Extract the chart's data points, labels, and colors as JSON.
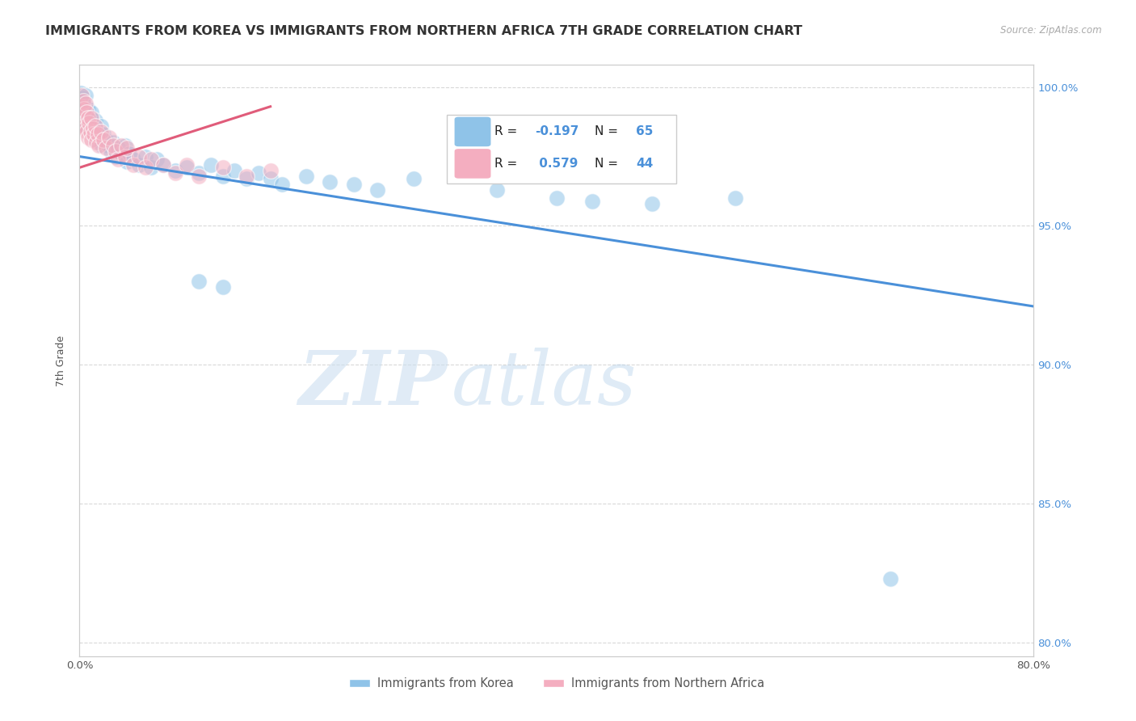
{
  "title": "IMMIGRANTS FROM KOREA VS IMMIGRANTS FROM NORTHERN AFRICA 7TH GRADE CORRELATION CHART",
  "source": "Source: ZipAtlas.com",
  "ylabel": "7th Grade",
  "xlim": [
    0.0,
    0.8
  ],
  "ylim": [
    0.795,
    1.008
  ],
  "x_ticks": [
    0.0,
    0.1,
    0.2,
    0.3,
    0.4,
    0.5,
    0.6,
    0.7,
    0.8
  ],
  "x_tick_labels": [
    "0.0%",
    "",
    "",
    "",
    "",
    "",
    "",
    "",
    "80.0%"
  ],
  "y_ticks": [
    0.8,
    0.85,
    0.9,
    0.95,
    1.0
  ],
  "y_tick_labels_left": [
    "80.0%",
    "85.0%",
    "90.0%",
    "95.0%",
    "100.0%"
  ],
  "y_tick_labels_right": [
    "80.0%",
    "85.0%",
    "90.0%",
    "95.0%",
    "100.0%"
  ],
  "legend": {
    "blue_R": "-0.197",
    "blue_N": "65",
    "pink_R": "0.579",
    "pink_N": "44"
  },
  "blue_color": "#8fc3e8",
  "pink_color": "#f4aec0",
  "blue_line_color": "#4a90d9",
  "pink_line_color": "#e05c7a",
  "watermark_zip": "ZIP",
  "watermark_atlas": "atlas",
  "blue_points": [
    [
      0.001,
      0.998
    ],
    [
      0.002,
      0.995
    ],
    [
      0.002,
      0.993
    ],
    [
      0.003,
      0.996
    ],
    [
      0.003,
      0.991
    ],
    [
      0.004,
      0.994
    ],
    [
      0.004,
      0.988
    ],
    [
      0.005,
      0.997
    ],
    [
      0.005,
      0.99
    ],
    [
      0.006,
      0.993
    ],
    [
      0.006,
      0.986
    ],
    [
      0.007,
      0.992
    ],
    [
      0.007,
      0.985
    ],
    [
      0.008,
      0.99
    ],
    [
      0.009,
      0.988
    ],
    [
      0.01,
      0.991
    ],
    [
      0.01,
      0.984
    ],
    [
      0.011,
      0.987
    ],
    [
      0.012,
      0.985
    ],
    [
      0.013,
      0.988
    ],
    [
      0.013,
      0.981
    ],
    [
      0.015,
      0.984
    ],
    [
      0.016,
      0.982
    ],
    [
      0.018,
      0.986
    ],
    [
      0.019,
      0.979
    ],
    [
      0.02,
      0.983
    ],
    [
      0.022,
      0.981
    ],
    [
      0.024,
      0.979
    ],
    [
      0.026,
      0.977
    ],
    [
      0.028,
      0.98
    ],
    [
      0.03,
      0.975
    ],
    [
      0.032,
      0.978
    ],
    [
      0.035,
      0.976
    ],
    [
      0.038,
      0.979
    ],
    [
      0.04,
      0.973
    ],
    [
      0.042,
      0.976
    ],
    [
      0.045,
      0.974
    ],
    [
      0.05,
      0.972
    ],
    [
      0.055,
      0.975
    ],
    [
      0.06,
      0.971
    ],
    [
      0.065,
      0.974
    ],
    [
      0.07,
      0.972
    ],
    [
      0.08,
      0.97
    ],
    [
      0.09,
      0.971
    ],
    [
      0.1,
      0.969
    ],
    [
      0.11,
      0.972
    ],
    [
      0.12,
      0.968
    ],
    [
      0.13,
      0.97
    ],
    [
      0.14,
      0.967
    ],
    [
      0.15,
      0.969
    ],
    [
      0.16,
      0.967
    ],
    [
      0.17,
      0.965
    ],
    [
      0.19,
      0.968
    ],
    [
      0.21,
      0.966
    ],
    [
      0.23,
      0.965
    ],
    [
      0.25,
      0.963
    ],
    [
      0.28,
      0.967
    ],
    [
      0.35,
      0.963
    ],
    [
      0.4,
      0.96
    ],
    [
      0.43,
      0.959
    ],
    [
      0.48,
      0.958
    ],
    [
      0.55,
      0.96
    ],
    [
      0.1,
      0.93
    ],
    [
      0.12,
      0.928
    ],
    [
      0.68,
      0.823
    ]
  ],
  "pink_points": [
    [
      0.001,
      0.993
    ],
    [
      0.002,
      0.997
    ],
    [
      0.002,
      0.99
    ],
    [
      0.003,
      0.995
    ],
    [
      0.003,
      0.988
    ],
    [
      0.004,
      0.992
    ],
    [
      0.004,
      0.986
    ],
    [
      0.005,
      0.994
    ],
    [
      0.005,
      0.985
    ],
    [
      0.006,
      0.991
    ],
    [
      0.006,
      0.984
    ],
    [
      0.007,
      0.989
    ],
    [
      0.007,
      0.982
    ],
    [
      0.008,
      0.987
    ],
    [
      0.009,
      0.984
    ],
    [
      0.01,
      0.989
    ],
    [
      0.01,
      0.981
    ],
    [
      0.011,
      0.985
    ],
    [
      0.012,
      0.983
    ],
    [
      0.013,
      0.986
    ],
    [
      0.014,
      0.98
    ],
    [
      0.015,
      0.983
    ],
    [
      0.016,
      0.979
    ],
    [
      0.018,
      0.984
    ],
    [
      0.02,
      0.981
    ],
    [
      0.022,
      0.978
    ],
    [
      0.025,
      0.982
    ],
    [
      0.028,
      0.979
    ],
    [
      0.03,
      0.977
    ],
    [
      0.032,
      0.974
    ],
    [
      0.035,
      0.979
    ],
    [
      0.038,
      0.975
    ],
    [
      0.04,
      0.978
    ],
    [
      0.045,
      0.972
    ],
    [
      0.05,
      0.975
    ],
    [
      0.055,
      0.971
    ],
    [
      0.06,
      0.974
    ],
    [
      0.07,
      0.972
    ],
    [
      0.08,
      0.969
    ],
    [
      0.09,
      0.972
    ],
    [
      0.1,
      0.968
    ],
    [
      0.12,
      0.971
    ],
    [
      0.14,
      0.968
    ],
    [
      0.16,
      0.97
    ]
  ],
  "blue_trend_x": [
    0.0,
    0.8
  ],
  "blue_trend_y": [
    0.975,
    0.921
  ],
  "pink_trend_x": [
    0.0,
    0.16
  ],
  "pink_trend_y": [
    0.971,
    0.993
  ],
  "background_color": "#ffffff",
  "grid_color": "#c8c8c8",
  "title_fontsize": 11.5,
  "axis_fontsize": 9,
  "tick_fontsize": 9.5,
  "right_tick_color": "#4a90d9"
}
